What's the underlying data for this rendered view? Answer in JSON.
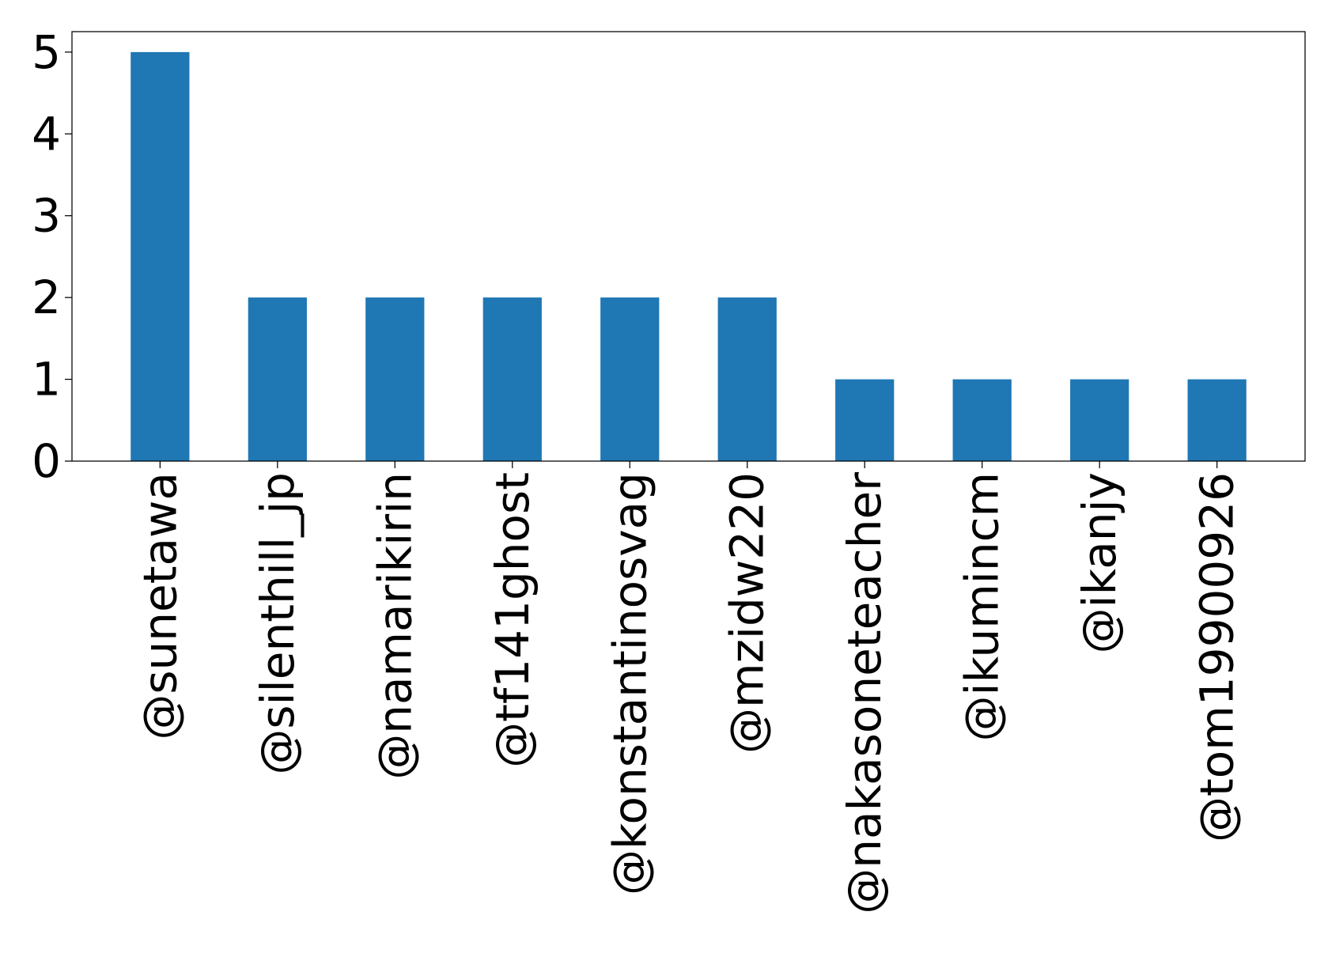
{
  "chart_data": {
    "type": "bar",
    "title": "",
    "xlabel": "",
    "ylabel": "",
    "categories": [
      "@sunetawa",
      "@silenthill_jp",
      "@namarikirin",
      "@tf141ghost",
      "@konstantinosvag",
      "@mzidw220",
      "@nakasoneteacher",
      "@ikumincm",
      "@ikanjy",
      "@tom19900926"
    ],
    "values": [
      5,
      2,
      2,
      2,
      2,
      2,
      1,
      1,
      1,
      1
    ],
    "ylim": [
      0,
      5.25
    ],
    "yticks": [
      0,
      1,
      2,
      3,
      4,
      5
    ],
    "grid": false,
    "legend": "none",
    "bar_color": "#1f77b4",
    "axis_color": "#000000"
  }
}
